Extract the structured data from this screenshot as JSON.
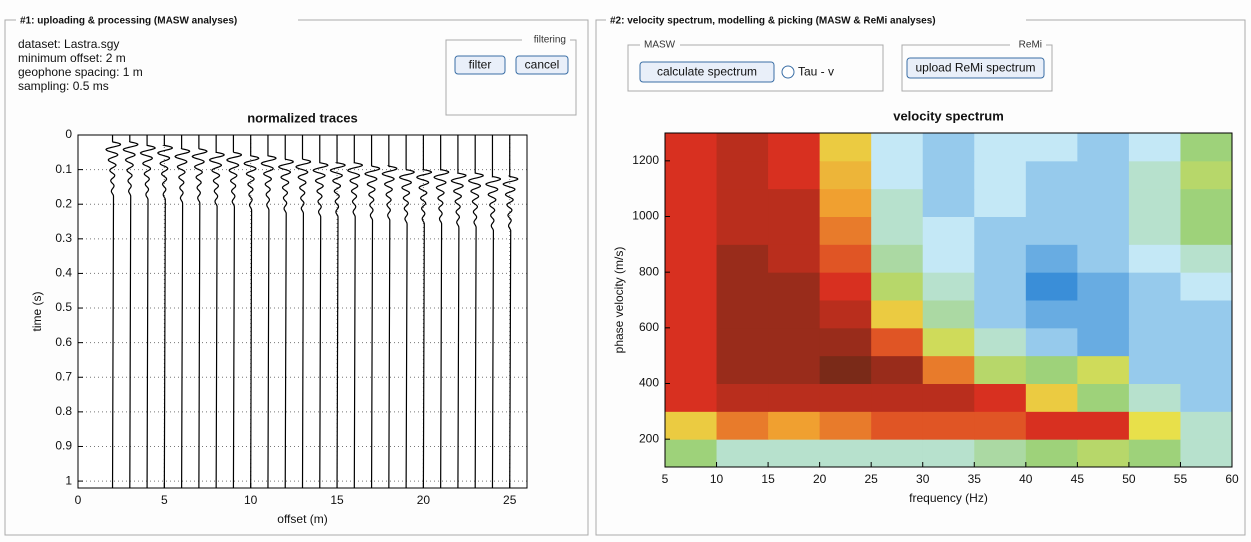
{
  "panels": [
    {
      "title": "#1: uploading & processing (MASW analyses)",
      "info": [
        "dataset: Lastra.sgy",
        "minimum offset: 2 m",
        "geophone spacing: 1 m",
        "sampling: 0.5 ms"
      ],
      "groups": [
        {
          "legend": "filtering",
          "buttons": [
            "filter",
            "cancel"
          ]
        }
      ]
    },
    {
      "title": "#2: velocity spectrum, modelling & picking (MASW & ReMi analyses)",
      "groups": [
        {
          "legend": "MASW",
          "buttons": [
            "calculate spectrum"
          ],
          "radio": "Tau - v"
        },
        {
          "legend": "ReMi",
          "buttons": [
            "upload ReMi spectrum"
          ]
        }
      ]
    }
  ],
  "chart_data": [
    {
      "type": "seismogram",
      "title": "normalized traces",
      "xlabel": "offset (m)",
      "ylabel": "time (s)",
      "x": [
        2,
        3,
        4,
        5,
        6,
        7,
        8,
        9,
        10,
        11,
        12,
        13,
        14,
        15,
        16,
        17,
        18,
        19,
        20,
        21,
        22,
        23,
        24,
        25
      ],
      "values": [
        0.02,
        0.02,
        0.03,
        0.03,
        0.04,
        0.04,
        0.05,
        0.05,
        0.06,
        0.06,
        0.07,
        0.07,
        0.08,
        0.08,
        0.08,
        0.09,
        0.09,
        0.1,
        0.1,
        0.1,
        0.11,
        0.11,
        0.12,
        0.12
      ],
      "color": "#000000",
      "xlim": [
        0,
        26
      ],
      "ylim": [
        0,
        1.02
      ],
      "y_inverted": true,
      "xticks": [
        0,
        5,
        10,
        15,
        20,
        25
      ],
      "yticks": [
        0,
        0.1,
        0.2,
        0.3,
        0.4,
        0.5,
        0.6,
        0.7,
        0.8,
        0.9,
        1
      ],
      "grid": true
    },
    {
      "type": "heatmap",
      "title": "velocity spectrum",
      "xlabel": "frequency (Hz)",
      "ylabel": "phase velocity (m/s)",
      "xbins": [
        5,
        10,
        15,
        20,
        25,
        30,
        35,
        40,
        45,
        50,
        55,
        60
      ],
      "ybins": [
        100,
        200,
        300,
        400,
        500,
        600,
        700,
        800,
        900,
        1000,
        1100,
        1200,
        1300
      ],
      "values": [
        [
          0.4,
          0.3,
          0.3,
          0.3,
          0.3,
          0.3,
          0.35,
          0.4,
          0.45,
          0.4,
          0.3
        ],
        [
          0.6,
          0.75,
          0.7,
          0.75,
          0.8,
          0.8,
          0.8,
          0.85,
          0.85,
          0.55,
          0.3
        ],
        [
          0.85,
          0.9,
          0.9,
          0.9,
          0.9,
          0.9,
          0.85,
          0.6,
          0.4,
          0.3,
          0.2
        ],
        [
          0.85,
          0.95,
          0.95,
          1.0,
          0.95,
          0.75,
          0.45,
          0.4,
          0.5,
          0.2,
          0.2
        ],
        [
          0.85,
          0.95,
          0.95,
          0.95,
          0.8,
          0.5,
          0.3,
          0.2,
          0.15,
          0.2,
          0.2
        ],
        [
          0.85,
          0.95,
          0.95,
          0.9,
          0.6,
          0.35,
          0.2,
          0.15,
          0.15,
          0.2,
          0.2
        ],
        [
          0.85,
          0.95,
          0.95,
          0.85,
          0.45,
          0.3,
          0.2,
          0.1,
          0.15,
          0.2,
          0.25
        ],
        [
          0.85,
          0.95,
          0.9,
          0.8,
          0.35,
          0.25,
          0.2,
          0.15,
          0.2,
          0.25,
          0.3
        ],
        [
          0.85,
          0.9,
          0.9,
          0.75,
          0.3,
          0.25,
          0.2,
          0.2,
          0.2,
          0.3,
          0.4
        ],
        [
          0.85,
          0.9,
          0.9,
          0.7,
          0.3,
          0.2,
          0.25,
          0.2,
          0.2,
          0.3,
          0.4
        ],
        [
          0.85,
          0.9,
          0.85,
          0.65,
          0.25,
          0.2,
          0.25,
          0.2,
          0.2,
          0.3,
          0.45
        ],
        [
          0.85,
          0.9,
          0.85,
          0.6,
          0.25,
          0.2,
          0.25,
          0.25,
          0.2,
          0.25,
          0.4
        ]
      ],
      "colors": [
        "#3a8ed8",
        "#c4e8f6",
        "#9ed27a",
        "#e8e04a",
        "#f0a030",
        "#d83020",
        "#7a2a18"
      ],
      "xlim": [
        5,
        60
      ],
      "ylim": [
        100,
        1300
      ],
      "xticks": [
        5,
        10,
        15,
        20,
        25,
        30,
        35,
        40,
        45,
        50,
        55,
        60
      ],
      "yticks": [
        200,
        400,
        600,
        800,
        1000,
        1200
      ]
    }
  ]
}
